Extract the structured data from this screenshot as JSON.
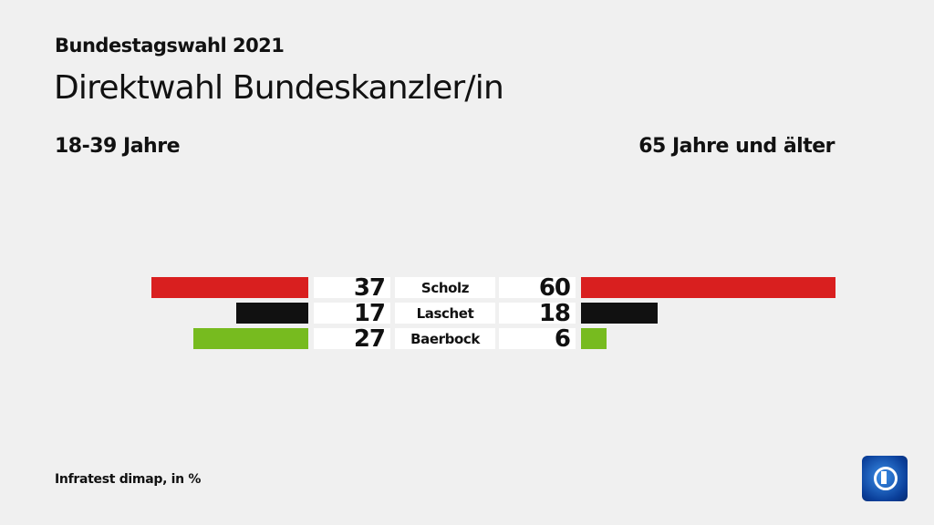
{
  "header": {
    "supertitle": "Bundestagswahl 2021",
    "title": "Direktwahl Bundeskanzler/in"
  },
  "groups": {
    "left": "18-39 Jahre",
    "right": "65 Jahre und älter"
  },
  "source": "Infratest dimap, in %",
  "logo": {
    "icon": "ard-das-erste-logo"
  },
  "chart_data": {
    "type": "bar",
    "orientation": "horizontal-butterfly",
    "categories": [
      "Scholz",
      "Laschet",
      "Baerbock"
    ],
    "colors": [
      "#d91f1f",
      "#111111",
      "#77bb1f"
    ],
    "series": [
      {
        "name": "18-39 Jahre",
        "values": [
          37,
          17,
          27
        ]
      },
      {
        "name": "65 Jahre und älter",
        "values": [
          60,
          18,
          6
        ]
      }
    ],
    "unit": "%"
  }
}
